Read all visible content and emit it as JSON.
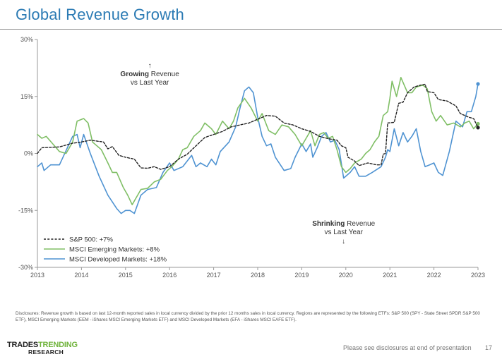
{
  "header": {
    "title": "Global Revenue Growth"
  },
  "chart_data": {
    "type": "line",
    "ylim": [
      -30,
      30
    ],
    "xlim": [
      2013,
      2023
    ],
    "y_ticks": [
      30,
      15,
      0,
      -15,
      -30
    ],
    "y_tick_labels": [
      "30%",
      "15%",
      "0%",
      "-15%",
      "-30%"
    ],
    "x_ticks": [
      2013,
      2014,
      2015,
      2016,
      2017,
      2018,
      2019,
      2020,
      2021,
      2022,
      2023
    ],
    "x_tick_labels": [
      "2013",
      "2014",
      "2015",
      "2016",
      "2017",
      "2018",
      "2019",
      "2020",
      "2021",
      "2022",
      "2023"
    ],
    "grid": false,
    "legend_position": "bottom-left",
    "series": [
      {
        "name": "S&P 500: +7%",
        "color": "#222222",
        "style": "dashed",
        "end_marker": true,
        "points": [
          [
            2013.0,
            0.0
          ],
          [
            2013.1,
            1.5
          ],
          [
            2013.5,
            1.7
          ],
          [
            2013.8,
            2.7
          ],
          [
            2014.0,
            3.0
          ],
          [
            2014.2,
            3.5
          ],
          [
            2014.5,
            3.0
          ],
          [
            2014.6,
            1.2
          ],
          [
            2014.7,
            1.8
          ],
          [
            2014.85,
            -0.5
          ],
          [
            2015.0,
            -1.0
          ],
          [
            2015.2,
            -1.5
          ],
          [
            2015.35,
            -3.8
          ],
          [
            2015.5,
            -3.9
          ],
          [
            2015.65,
            -3.5
          ],
          [
            2015.8,
            -4.2
          ],
          [
            2016.0,
            -3.5
          ],
          [
            2016.2,
            -1.5
          ],
          [
            2016.4,
            -0.2
          ],
          [
            2016.6,
            2.0
          ],
          [
            2016.8,
            4.2
          ],
          [
            2017.0,
            5.0
          ],
          [
            2017.2,
            5.8
          ],
          [
            2017.4,
            7.0
          ],
          [
            2017.6,
            7.5
          ],
          [
            2017.8,
            8.0
          ],
          [
            2018.0,
            9.0
          ],
          [
            2018.2,
            10.0
          ],
          [
            2018.4,
            9.8
          ],
          [
            2018.6,
            8.0
          ],
          [
            2018.8,
            7.5
          ],
          [
            2019.0,
            6.5
          ],
          [
            2019.2,
            5.8
          ],
          [
            2019.4,
            4.5
          ],
          [
            2019.6,
            3.9
          ],
          [
            2019.8,
            3.5
          ],
          [
            2019.9,
            2.0
          ],
          [
            2020.0,
            1.5
          ],
          [
            2020.05,
            -1.0
          ],
          [
            2020.2,
            -2.0
          ],
          [
            2020.3,
            -3.2
          ],
          [
            2020.5,
            -2.5
          ],
          [
            2020.7,
            -3.0
          ],
          [
            2020.8,
            -3.0
          ],
          [
            2020.85,
            -0.2
          ],
          [
            2020.9,
            0.0
          ],
          [
            2020.95,
            8.0
          ],
          [
            2021.1,
            8.2
          ],
          [
            2021.2,
            13.2
          ],
          [
            2021.3,
            13.5
          ],
          [
            2021.4,
            16.0
          ],
          [
            2021.55,
            17.5
          ],
          [
            2021.7,
            18.0
          ],
          [
            2021.8,
            18.2
          ],
          [
            2021.85,
            16.3
          ],
          [
            2022.0,
            16.0
          ],
          [
            2022.1,
            14.2
          ],
          [
            2022.3,
            13.8
          ],
          [
            2022.5,
            12.5
          ],
          [
            2022.6,
            10.5
          ],
          [
            2022.8,
            9.5
          ],
          [
            2022.9,
            9.2
          ],
          [
            2023.0,
            6.8
          ]
        ]
      },
      {
        "name": "MSCI Emerging Markets: +8%",
        "color": "#80bf66",
        "style": "solid",
        "end_marker": true,
        "points": [
          [
            2013.0,
            5.0
          ],
          [
            2013.1,
            4.0
          ],
          [
            2013.2,
            4.5
          ],
          [
            2013.35,
            2.5
          ],
          [
            2013.5,
            0.5
          ],
          [
            2013.65,
            0.0
          ],
          [
            2013.8,
            3.0
          ],
          [
            2013.9,
            8.5
          ],
          [
            2014.05,
            9.2
          ],
          [
            2014.15,
            8.0
          ],
          [
            2014.25,
            3.0
          ],
          [
            2014.45,
            1.0
          ],
          [
            2014.6,
            -2.5
          ],
          [
            2014.7,
            -5.0
          ],
          [
            2014.8,
            -5.0
          ],
          [
            2014.95,
            -9.0
          ],
          [
            2015.05,
            -11.0
          ],
          [
            2015.15,
            -13.5
          ],
          [
            2015.25,
            -11.5
          ],
          [
            2015.35,
            -9.5
          ],
          [
            2015.5,
            -9.2
          ],
          [
            2015.65,
            -7.5
          ],
          [
            2015.8,
            -6.8
          ],
          [
            2015.95,
            -4.5
          ],
          [
            2016.05,
            -3.5
          ],
          [
            2016.2,
            -1.5
          ],
          [
            2016.3,
            1.0
          ],
          [
            2016.4,
            1.5
          ],
          [
            2016.55,
            4.5
          ],
          [
            2016.7,
            6.0
          ],
          [
            2016.8,
            8.0
          ],
          [
            2016.95,
            6.5
          ],
          [
            2017.05,
            5.0
          ],
          [
            2017.2,
            8.5
          ],
          [
            2017.35,
            6.5
          ],
          [
            2017.45,
            8.5
          ],
          [
            2017.55,
            12.0
          ],
          [
            2017.7,
            14.5
          ],
          [
            2017.85,
            12.0
          ],
          [
            2018.0,
            8.5
          ],
          [
            2018.1,
            10.5
          ],
          [
            2018.25,
            6.0
          ],
          [
            2018.4,
            5.0
          ],
          [
            2018.55,
            7.5
          ],
          [
            2018.7,
            7.0
          ],
          [
            2018.85,
            5.0
          ],
          [
            2019.0,
            2.0
          ],
          [
            2019.1,
            4.0
          ],
          [
            2019.2,
            6.0
          ],
          [
            2019.3,
            2.0
          ],
          [
            2019.4,
            5.0
          ],
          [
            2019.5,
            5.5
          ],
          [
            2019.6,
            4.0
          ],
          [
            2019.7,
            4.5
          ],
          [
            2019.8,
            1.0
          ],
          [
            2019.9,
            -3.5
          ],
          [
            2020.0,
            -5.0
          ],
          [
            2020.1,
            -4.0
          ],
          [
            2020.2,
            -2.5
          ],
          [
            2020.35,
            -1.5
          ],
          [
            2020.45,
            0.0
          ],
          [
            2020.55,
            1.0
          ],
          [
            2020.65,
            3.0
          ],
          [
            2020.75,
            4.5
          ],
          [
            2020.85,
            10.0
          ],
          [
            2020.95,
            11.0
          ],
          [
            2021.0,
            14.5
          ],
          [
            2021.05,
            19.0
          ],
          [
            2021.15,
            15.0
          ],
          [
            2021.25,
            20.0
          ],
          [
            2021.4,
            16.0
          ],
          [
            2021.5,
            16.0
          ],
          [
            2021.6,
            17.5
          ],
          [
            2021.75,
            18.0
          ],
          [
            2021.85,
            17.0
          ],
          [
            2021.95,
            11.0
          ],
          [
            2022.05,
            8.5
          ],
          [
            2022.15,
            10.0
          ],
          [
            2022.3,
            7.5
          ],
          [
            2022.45,
            8.0
          ],
          [
            2022.6,
            7.0
          ],
          [
            2022.7,
            8.0
          ],
          [
            2022.8,
            8.5
          ],
          [
            2022.9,
            6.5
          ],
          [
            2023.0,
            7.8
          ]
        ]
      },
      {
        "name": "MSCI Developed Markets: +18%",
        "color": "#4f93d2",
        "style": "solid",
        "end_marker": true,
        "points": [
          [
            2013.0,
            -3.5
          ],
          [
            2013.1,
            -2.5
          ],
          [
            2013.15,
            -4.5
          ],
          [
            2013.3,
            -3.0
          ],
          [
            2013.5,
            -3.0
          ],
          [
            2013.7,
            2.0
          ],
          [
            2013.8,
            4.5
          ],
          [
            2013.9,
            5.0
          ],
          [
            2013.97,
            1.5
          ],
          [
            2014.05,
            5.0
          ],
          [
            2014.2,
            0.0
          ],
          [
            2014.4,
            -6.0
          ],
          [
            2014.6,
            -11.0
          ],
          [
            2014.8,
            -14.5
          ],
          [
            2014.9,
            -15.8
          ],
          [
            2015.0,
            -15.0
          ],
          [
            2015.1,
            -15.0
          ],
          [
            2015.2,
            -15.8
          ],
          [
            2015.35,
            -11.0
          ],
          [
            2015.5,
            -9.5
          ],
          [
            2015.7,
            -9.0
          ],
          [
            2015.85,
            -5.0
          ],
          [
            2016.0,
            -2.5
          ],
          [
            2016.1,
            -4.5
          ],
          [
            2016.3,
            -3.5
          ],
          [
            2016.5,
            -0.5
          ],
          [
            2016.6,
            -3.5
          ],
          [
            2016.7,
            -2.5
          ],
          [
            2016.85,
            -3.5
          ],
          [
            2016.95,
            -1.5
          ],
          [
            2017.05,
            -3.0
          ],
          [
            2017.15,
            0.5
          ],
          [
            2017.35,
            3.0
          ],
          [
            2017.5,
            7.0
          ],
          [
            2017.6,
            12.0
          ],
          [
            2017.7,
            16.5
          ],
          [
            2017.8,
            17.5
          ],
          [
            2017.9,
            16.0
          ],
          [
            2018.0,
            9.5
          ],
          [
            2018.1,
            4.5
          ],
          [
            2018.2,
            2.0
          ],
          [
            2018.3,
            2.5
          ],
          [
            2018.4,
            -1.0
          ],
          [
            2018.6,
            -4.5
          ],
          [
            2018.75,
            -4.0
          ],
          [
            2018.85,
            -1.0
          ],
          [
            2019.0,
            2.5
          ],
          [
            2019.1,
            0.5
          ],
          [
            2019.2,
            2.5
          ],
          [
            2019.25,
            -1.0
          ],
          [
            2019.35,
            1.5
          ],
          [
            2019.45,
            4.5
          ],
          [
            2019.55,
            5.5
          ],
          [
            2019.65,
            3.0
          ],
          [
            2019.75,
            3.5
          ],
          [
            2019.85,
            1.0
          ],
          [
            2019.95,
            -6.5
          ],
          [
            2020.1,
            -5.0
          ],
          [
            2020.2,
            -3.5
          ],
          [
            2020.3,
            -6.0
          ],
          [
            2020.45,
            -6.0
          ],
          [
            2020.6,
            -5.0
          ],
          [
            2020.8,
            -3.5
          ],
          [
            2020.9,
            -1.0
          ],
          [
            2020.95,
            1.0
          ],
          [
            2021.0,
            0.5
          ],
          [
            2021.1,
            6.5
          ],
          [
            2021.2,
            2.0
          ],
          [
            2021.3,
            5.5
          ],
          [
            2021.4,
            3.0
          ],
          [
            2021.5,
            4.5
          ],
          [
            2021.6,
            6.5
          ],
          [
            2021.7,
            0.5
          ],
          [
            2021.8,
            -3.5
          ],
          [
            2021.9,
            -3.0
          ],
          [
            2022.0,
            -2.5
          ],
          [
            2022.1,
            -5.0
          ],
          [
            2022.2,
            -5.8
          ],
          [
            2022.35,
            0.5
          ],
          [
            2022.5,
            8.5
          ],
          [
            2022.65,
            7.0
          ],
          [
            2022.75,
            11.0
          ],
          [
            2022.85,
            11.0
          ],
          [
            2022.95,
            15.0
          ],
          [
            2023.0,
            18.3
          ]
        ]
      }
    ],
    "annotations": [
      {
        "arrow": "↑",
        "bold": "Growing",
        "rest": " Revenue",
        "line2": "vs Last Year",
        "x": 2015.55,
        "y": 20.3
      },
      {
        "arrow": "↓",
        "bold": "Shrinking",
        "rest": " Revenue",
        "line2": "vs Last Year",
        "x": 2019.95,
        "y": -19.0
      }
    ]
  },
  "disclosures": "Disclosures: Revenue growth is based on last 12-month reported sales in local currency divided by the prior 12 months sales in local currency. Regions are represented by the following ETFs: S&P 500 (SPY - State Street SPDR S&P 500 ETF), MSCI Emerging Markets (EEM - iShares MSCI Emerging Markets ETF) and MSCI Developed Markets (EFA - iShares MSCI EAFE ETF).",
  "footer": {
    "logo_part1": "TRADES",
    "logo_part2": "TRENDING",
    "logo_line2": "RESEARCH",
    "note": "Please see disclosures at end of presentation",
    "page_number": "17"
  }
}
